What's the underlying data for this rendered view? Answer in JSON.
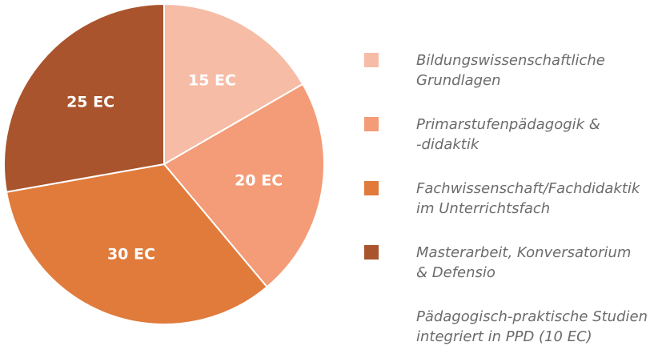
{
  "chart_data": {
    "type": "pie",
    "categories": [
      "Bildungswissenschaftliche\nGrundlagen",
      "Primarstufenpädagogik &\n-didaktik",
      "Fachwissenschaft/Fachdidaktik\nim Unterrichtsfach",
      "Masterarbeit, Konversatorium\n& Defensio"
    ],
    "values": [
      15,
      20,
      30,
      25
    ],
    "value_labels": [
      "15 EC",
      "20 EC",
      "30 EC",
      "25 EC"
    ],
    "colors": [
      "#f6bca6",
      "#f39c77",
      "#e07b3c",
      "#a9542c"
    ],
    "annotation": "Pädagogisch-praktische Studien\nintegriert in PPD (10 EC)",
    "legend": "right"
  }
}
